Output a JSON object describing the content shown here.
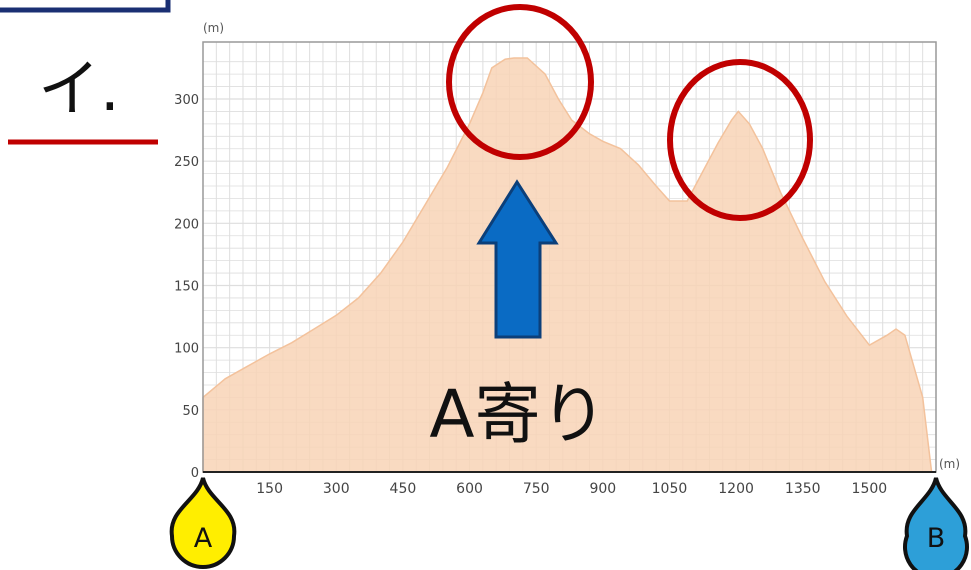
{
  "question_label": "イ.",
  "annotation": {
    "arrow_text": "A寄り",
    "arrow_color": "#0a6bc4",
    "circle_color": "#c00000"
  },
  "endpoints": {
    "start": {
      "label": "A",
      "color": "#ffee00"
    },
    "end": {
      "label": "B",
      "color": "#2d9fd8"
    }
  },
  "colors": {
    "fill": "#f8d4b6",
    "grid": "#dedede",
    "underline": "#c00000",
    "frame": "#1a2f73"
  },
  "chart_data": {
    "type": "area",
    "title": "",
    "x_unit": "(m)",
    "y_unit": "(m)",
    "xlim": [
      0,
      1650
    ],
    "ylim": [
      0,
      340
    ],
    "x_ticks": [
      150,
      300,
      450,
      600,
      750,
      900,
      1050,
      1200,
      1350,
      1500
    ],
    "x_tick_labels": [
      "150",
      "300",
      "450",
      "600",
      "750",
      "900",
      "1050",
      "1200",
      "1350",
      "1500"
    ],
    "y_ticks": [
      0,
      50,
      100,
      150,
      200,
      250,
      300
    ],
    "y_tick_labels": [
      "0",
      "50",
      "100",
      "150",
      "200",
      "250",
      "300"
    ],
    "grid": true,
    "series": [
      {
        "x": [
          0,
          50,
          100,
          150,
          200,
          250,
          300,
          350,
          400,
          450,
          500,
          550,
          600,
          630,
          650,
          680,
          700,
          730,
          770,
          800,
          830,
          870,
          900,
          940,
          980,
          1020,
          1050,
          1090,
          1130,
          1160,
          1190,
          1205,
          1230,
          1260,
          1300,
          1350,
          1400,
          1450,
          1500,
          1540,
          1560,
          1580,
          1600,
          1620,
          1640
        ],
        "y": [
          60,
          75,
          85,
          95,
          104,
          115,
          126,
          140,
          160,
          185,
          215,
          245,
          280,
          305,
          325,
          332,
          333,
          333,
          320,
          300,
          283,
          272,
          266,
          260,
          247,
          230,
          218,
          218,
          245,
          265,
          283,
          290,
          280,
          260,
          225,
          188,
          153,
          125,
          102,
          110,
          115,
          110,
          85,
          60,
          0
        ]
      }
    ]
  }
}
